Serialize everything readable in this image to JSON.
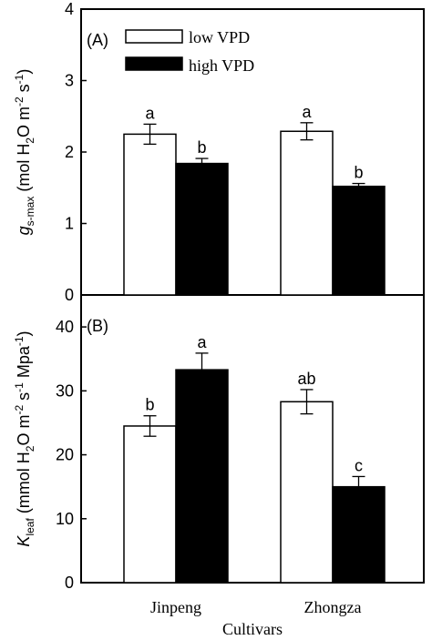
{
  "chart_data": [
    {
      "type": "bar",
      "panel_label": "(A)",
      "categories": [
        "Jinpeng",
        "Zhongza"
      ],
      "series": [
        {
          "name": "low VPD",
          "values": [
            2.25,
            2.29
          ],
          "errors": [
            0.14,
            0.12
          ],
          "letters": [
            "a",
            "a"
          ]
        },
        {
          "name": "high VPD",
          "values": [
            1.84,
            1.52
          ],
          "errors": [
            0.07,
            0.04
          ],
          "letters": [
            "b",
            "b"
          ]
        }
      ],
      "ylim": [
        0,
        4
      ],
      "yticks": [
        "0",
        "1",
        "2",
        "3",
        "4"
      ],
      "ylabel_main": "g",
      "ylabel_sub": "s-max",
      "ylabel_unit": " (mol H",
      "ylabel_unit_sub": "2",
      "ylabel_unit_rest": "O m",
      "ylabel_exp1": "-2",
      "ylabel_s": " s",
      "ylabel_exp2": "-1",
      "ylabel_close": ")",
      "legend_position": "top-left",
      "grid": false
    },
    {
      "type": "bar",
      "panel_label": "(B)",
      "categories": [
        "Jinpeng",
        "Zhongza"
      ],
      "series": [
        {
          "name": "low VPD",
          "values": [
            24.5,
            28.3
          ],
          "errors": [
            1.6,
            1.9
          ],
          "letters": [
            "b",
            "ab"
          ]
        },
        {
          "name": "high VPD",
          "values": [
            33.3,
            15.0
          ],
          "errors": [
            2.6,
            1.6
          ],
          "letters": [
            "a",
            "c"
          ]
        }
      ],
      "ylim": [
        0,
        45
      ],
      "yticks": [
        "0",
        "10",
        "20",
        "30",
        "40"
      ],
      "ylabel_main": "K",
      "ylabel_sub": "leaf",
      "ylabel_unit": " (mmol H",
      "ylabel_unit_sub": "2",
      "ylabel_unit_rest": "O m",
      "ylabel_exp1": "-2",
      "ylabel_s": " s",
      "ylabel_exp2": "-1",
      "ylabel_mpa": " Mpa",
      "ylabel_exp3": "-1",
      "ylabel_close": ")",
      "grid": false
    }
  ],
  "xlabel": "Cultivars",
  "colors": {
    "low_vpd_fill": "#ffffff",
    "high_vpd_fill": "#000000",
    "axis": "#000000"
  }
}
